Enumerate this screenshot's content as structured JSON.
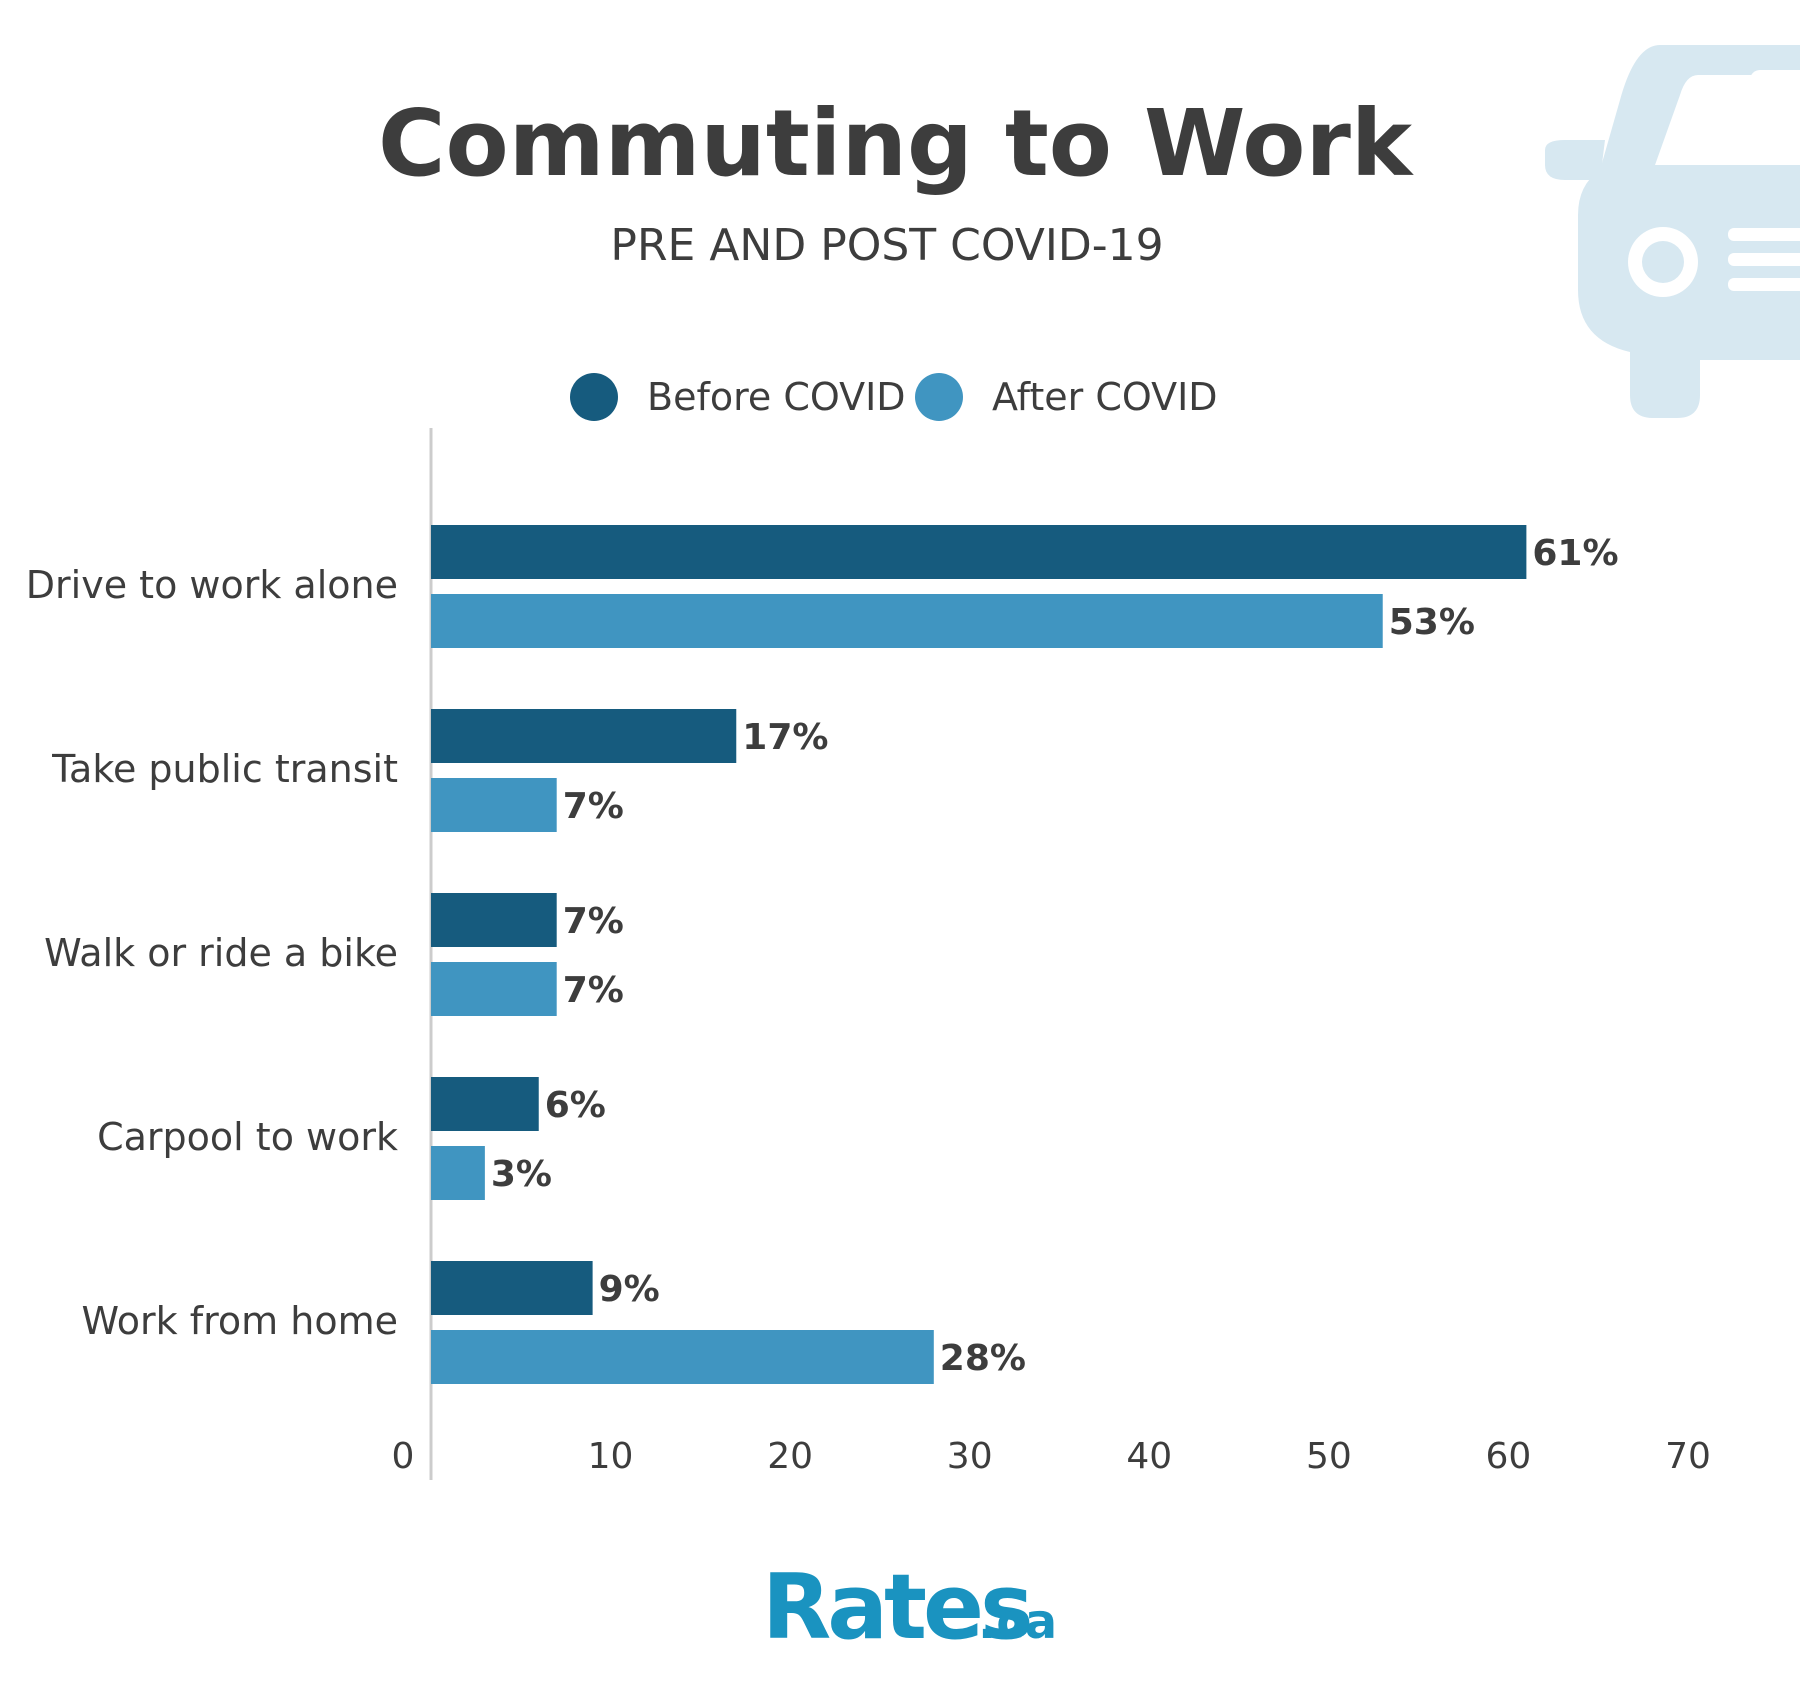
{
  "header": {
    "title": "Commuting to Work",
    "subtitle": "PRE AND POST COVID-19"
  },
  "logo": {
    "name": "Rates",
    "ext": ".ca"
  },
  "colors": {
    "before": "#165b7e",
    "after": "#4095c1",
    "axis": "#cccccc",
    "car_icon": "#d7e8f1"
  },
  "chart_data": {
    "type": "bar",
    "orientation": "horizontal",
    "title": "Commuting to Work",
    "subtitle": "PRE AND POST COVID-19",
    "categories": [
      "Drive to work alone",
      "Take public transit",
      "Walk or ride a bike",
      "Carpool to work",
      "Work from home"
    ],
    "series": [
      {
        "name": "Before COVID",
        "values": [
          61,
          17,
          7,
          6,
          9
        ],
        "labels": [
          "61%",
          "17%",
          "7%",
          "6%",
          "9%"
        ]
      },
      {
        "name": "After COVID",
        "values": [
          53,
          7,
          7,
          3,
          28
        ],
        "labels": [
          "53%",
          "7%",
          "7%",
          "3%",
          "28%"
        ]
      }
    ],
    "xlim": [
      0,
      70
    ],
    "xticks": [
      "0",
      "10",
      "20",
      "30",
      "40",
      "50",
      "60",
      "70"
    ],
    "legend_position": "top-center",
    "grid": false
  }
}
